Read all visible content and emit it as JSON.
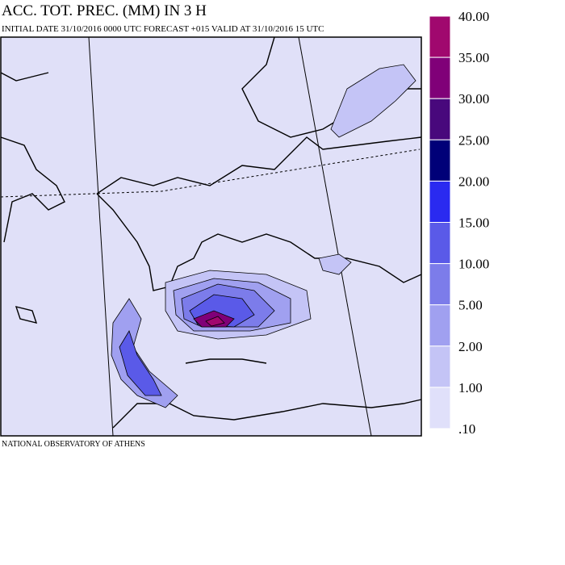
{
  "title": "ACC. TOT. PREC. (MM) IN 3 H",
  "subtitle": "INITIAL DATE 31/10/2016   0000 UTC FORECAST +015 VALID AT  31/10/2016  15 UTC",
  "credit": "NATIONAL OBSERVATORY OF ATHENS",
  "colorbar": {
    "labels": [
      "40.00",
      "35.00",
      "30.00",
      "25.00",
      "20.00",
      "15.00",
      "10.00",
      "5.00",
      "2.00",
      "1.00",
      ".10"
    ],
    "colors": [
      "#a0086e",
      "#800078",
      "#48087c",
      "#000078",
      "#2a2af0",
      "#5a5ae8",
      "#7c7cea",
      "#a0a0f0",
      "#c4c4f6",
      "#e0e0fa"
    ]
  }
}
